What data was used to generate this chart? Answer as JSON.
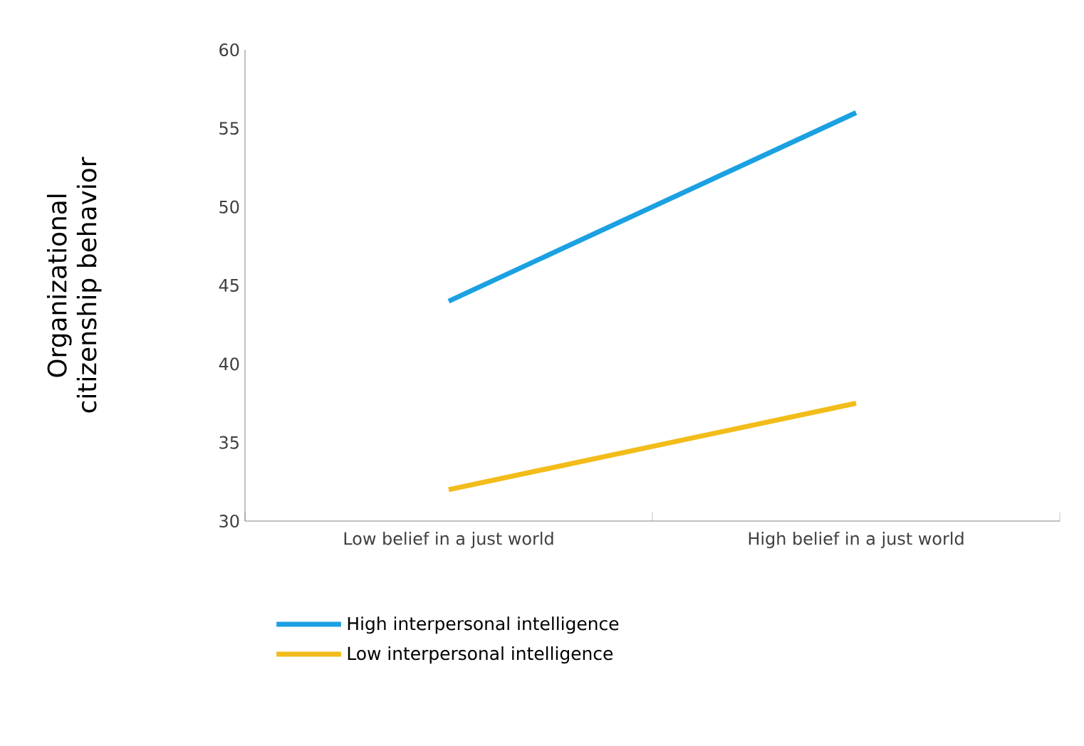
{
  "chart_data": {
    "type": "line",
    "ylabel": "Organizational citizenship behavior",
    "categories": [
      "Low belief in a just world",
      "High belief in a just world"
    ],
    "series": [
      {
        "name": "High interpersonal intelligence",
        "color": "#1ba1e2",
        "values": [
          44,
          56
        ]
      },
      {
        "name": "Low interpersonal intelligence",
        "color": "#f2bc1a",
        "values": [
          32,
          37.5
        ]
      }
    ],
    "ylim": [
      30,
      60
    ],
    "yticks": [
      30,
      35,
      40,
      45,
      50,
      55,
      60
    ],
    "grid": false,
    "legend": "bottom left",
    "marker": "none",
    "line_style": "solid"
  }
}
